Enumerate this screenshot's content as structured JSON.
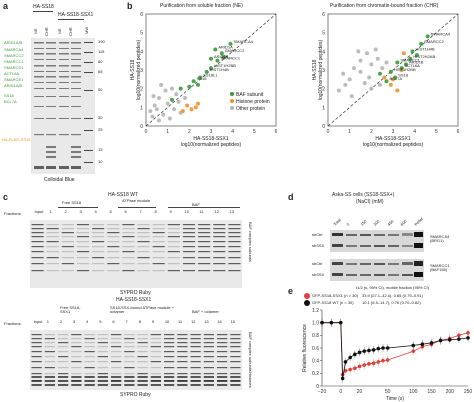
{
  "panel_a": {
    "label": "a",
    "col_headers": [
      "HA-SS18",
      "HA-SS18-SSX1"
    ],
    "lane_labels": [
      "NE",
      "CHR",
      "NE",
      "CHR",
      "MW"
    ],
    "mw_markers": [
      "190",
      "115",
      "80",
      "65",
      "50",
      "30",
      "25",
      "15",
      "10"
    ],
    "protein_labels_left": [
      "ARID1A/B",
      "SMARCA4",
      "SMARCC2",
      "SMARCC1",
      "SMARCD1",
      "ACTL6A",
      "SMARCE1",
      "ARID1A/B-",
      "SS18",
      "BCL7A",
      "HA-FLAG-SS18"
    ],
    "caption": "Colloidal Blue"
  },
  "panel_b": {
    "label": "b",
    "left_title": "Purification from soluble fraction (NE)",
    "right_title": "Purification from chromatin-bound fraction (CHR)",
    "ylabel": "HA-SS18\nlog10(normalized peptides)",
    "xlabel": "HA-SS18-SSX1\nlog10(normalized peptides)",
    "legend": [
      "BAF subunit",
      "Histone protein",
      "Other protein"
    ],
    "colors": {
      "baf": "#3a9a3a",
      "histone": "#f0922a",
      "other": "#b5b5b5"
    },
    "left_point_labels": [
      "SMARCA4",
      "ARID1A",
      "SMARCC2",
      "ARID1B",
      "SMARCC1",
      "SS18",
      "SS18L1",
      "HIST1H4B",
      "HIST1H2BB"
    ],
    "right_point_labels": [
      "SMARCA4",
      "SMARCC2",
      "HIST1H4B",
      "ARID1B",
      "SMARCC1",
      "HIST1H2BB",
      "ACTL6A",
      "SS18",
      "BCL7A",
      "HIST2H2AB"
    ]
  },
  "panel_c": {
    "label": "c",
    "top": {
      "title": "HA-SS18 WT",
      "groups": [
        "Free SS18",
        "ATPase module",
        "BAF"
      ],
      "fraction_label": "Fractions:",
      "lanes": [
        "Input",
        "1",
        "2",
        "3",
        "4",
        "5",
        "6",
        "7",
        "8",
        "9",
        "10",
        "11",
        "12",
        "13"
      ],
      "side_label": "BAF complex subunits",
      "stain": "SYPRO Ruby"
    },
    "bottom": {
      "title": "HA-SS18-SSX1",
      "groups": [
        "Free SS18-SSX1",
        "SS18-SSX-bound ATPase module + octamer",
        "BAF + octamer"
      ],
      "fraction_label": "Fractions:",
      "lanes": [
        "Input",
        "1",
        "2",
        "3",
        "4",
        "5",
        "6",
        "7",
        "8",
        "9",
        "10",
        "11",
        "12",
        "13",
        "14",
        "15"
      ],
      "side_label": "BAF complex subunits",
      "side_label_2": "Histones",
      "stain": "SYPRO Ruby"
    }
  },
  "panel_d": {
    "label": "d",
    "title": "Aska-SS cells (SS18-SSX+)",
    "subtitle": "(NaCl) (mM)",
    "columns": [
      "Total",
      "0",
      "150",
      "300",
      "450",
      "600",
      "Pellet"
    ],
    "rows": [
      "shCtrl",
      "shSSX",
      "shCtrl",
      "shSSX"
    ],
    "blot_labels": [
      "SMARCA4\n(BRG1)",
      "SMARCC1\n(BAF155)"
    ]
  },
  "panel_e": {
    "label": "e",
    "legend_header": "t1/2 (s, 95% CI), mobile fraction (95% CI)",
    "series_labels": [
      "GFP-SS18-SSX1 (n = 30)",
      "GFP-SS18 WT (n = 30)"
    ],
    "series_stats": [
      "33.9 (27.1–42.4), 0.85 (0.79–0.91)",
      "10.1 (6.9–14.7), 0.76 (0.70–0.82)"
    ],
    "ylabel": "Relative fluorescence",
    "xlabel": "Time (s)",
    "yticks": [
      "0",
      "0.2",
      "0.4",
      "0.6",
      "0.8",
      "1.0",
      "1.2"
    ],
    "xticks": [
      "−20",
      "0",
      "20",
      "50",
      "100",
      "150",
      "200",
      "250"
    ]
  },
  "chart_data": [
    {
      "type": "scatter",
      "title": "Purification from soluble fraction (NE)",
      "xlabel": "HA-SS18-SSX1 log10(normalized peptides)",
      "ylabel": "HA-SS18 log10(normalized peptides)",
      "xlim": [
        0,
        6
      ],
      "ylim": [
        0,
        6
      ],
      "series": [
        {
          "name": "BAF subunit",
          "points": [
            [
              3.9,
              4.4
            ],
            [
              3.2,
              4.1
            ],
            [
              3.5,
              3.9
            ],
            [
              3.0,
              3.6
            ],
            [
              3.3,
              3.5
            ],
            [
              2.2,
              2.4
            ],
            [
              2.5,
              2.6
            ],
            [
              2.8,
              2.9
            ],
            [
              3.0,
              3.1
            ],
            [
              2.0,
              2.1
            ],
            [
              2.4,
              2.2
            ],
            [
              1.6,
              2.0
            ],
            [
              1.2,
              1.4
            ],
            [
              3.6,
              3.7
            ]
          ]
        },
        {
          "name": "Histone protein",
          "points": [
            [
              1.9,
              1.1
            ],
            [
              2.1,
              0.9
            ],
            [
              2.4,
              1.2
            ],
            [
              1.7,
              0.8
            ],
            [
              2.3,
              1.0
            ]
          ]
        },
        {
          "name": "Other protein",
          "points": [
            [
              0.3,
              0.5
            ],
            [
              0.5,
              0.9
            ],
            [
              0.8,
              0.6
            ],
            [
              1.0,
              1.2
            ],
            [
              0.6,
              1.5
            ],
            [
              1.3,
              0.9
            ],
            [
              0.9,
              1.9
            ],
            [
              1.5,
              1.3
            ],
            [
              0.4,
              1.1
            ],
            [
              0.7,
              2.2
            ],
            [
              1.1,
              0.4
            ],
            [
              1.4,
              1.7
            ],
            [
              0.2,
              0.8
            ],
            [
              1.8,
              1.5
            ],
            [
              0.6,
              0.3
            ],
            [
              1.2,
              2.0
            ],
            [
              0.35,
              1.6
            ],
            [
              1.6,
              0.7
            ]
          ]
        }
      ]
    },
    {
      "type": "scatter",
      "title": "Purification from chromatin-bound fraction (CHR)",
      "xlabel": "HA-SS18-SSX1 log10(normalized peptides)",
      "ylabel": "HA-SS18 log10(normalized peptides)",
      "xlim": [
        0,
        6
      ],
      "ylim": [
        0,
        6
      ],
      "series": [
        {
          "name": "BAF subunit",
          "points": [
            [
              4.6,
              4.8
            ],
            [
              4.3,
              4.4
            ],
            [
              3.9,
              4.0
            ],
            [
              3.6,
              3.3
            ],
            [
              3.2,
              3.4
            ],
            [
              2.9,
              2.9
            ],
            [
              3.4,
              3.1
            ],
            [
              3.1,
              2.6
            ],
            [
              2.7,
              2.4
            ],
            [
              3.8,
              3.6
            ],
            [
              4.1,
              3.8
            ],
            [
              2.4,
              2.8
            ]
          ]
        },
        {
          "name": "Histone protein",
          "points": [
            [
              3.5,
              3.9
            ],
            [
              3.4,
              3.0
            ],
            [
              2.9,
              2.2
            ],
            [
              3.2,
              1.9
            ],
            [
              2.6,
              2.6
            ],
            [
              3.0,
              2.5
            ]
          ]
        },
        {
          "name": "Other protein",
          "points": [
            [
              1.0,
              2.5
            ],
            [
              1.5,
              2.9
            ],
            [
              2.0,
              3.3
            ],
            [
              1.8,
              3.9
            ],
            [
              2.3,
              3.6
            ],
            [
              1.2,
              3.1
            ],
            [
              0.8,
              2.2
            ],
            [
              1.9,
              2.6
            ],
            [
              2.5,
              3.1
            ],
            [
              1.5,
              3.5
            ],
            [
              2.2,
              4.1
            ],
            [
              0.5,
              1.9
            ],
            [
              1.1,
              1.6
            ],
            [
              2.7,
              3.4
            ],
            [
              1.7,
              2.3
            ],
            [
              2.0,
              2.0
            ],
            [
              0.7,
              2.8
            ],
            [
              1.4,
              4.0
            ],
            [
              2.4,
              2.2
            ]
          ]
        }
      ]
    },
    {
      "type": "line",
      "title": "",
      "xlabel": "Time (s)",
      "ylabel": "Relative fluorescence",
      "ylim": [
        0,
        1.2
      ],
      "x": [
        -20,
        -10,
        0,
        2,
        5,
        10,
        15,
        20,
        25,
        30,
        35,
        40,
        45,
        50,
        100,
        125,
        150,
        175,
        200,
        225,
        250
      ],
      "series": [
        {
          "name": "GFP-SS18-SSX1 (n = 30)",
          "values": [
            1.0,
            1.0,
            1.0,
            0.18,
            0.24,
            0.26,
            0.28,
            0.31,
            0.33,
            0.35,
            0.36,
            0.38,
            0.4,
            0.41,
            0.55,
            0.62,
            0.66,
            0.72,
            0.75,
            0.8,
            0.84
          ]
        },
        {
          "name": "GFP-SS18 WT (n = 30)",
          "values": [
            1.0,
            1.0,
            1.0,
            0.12,
            0.38,
            0.45,
            0.5,
            0.53,
            0.55,
            0.56,
            0.57,
            0.59,
            0.6,
            0.6,
            0.64,
            0.66,
            0.68,
            0.72,
            0.73,
            0.74,
            0.76
          ]
        }
      ]
    }
  ]
}
